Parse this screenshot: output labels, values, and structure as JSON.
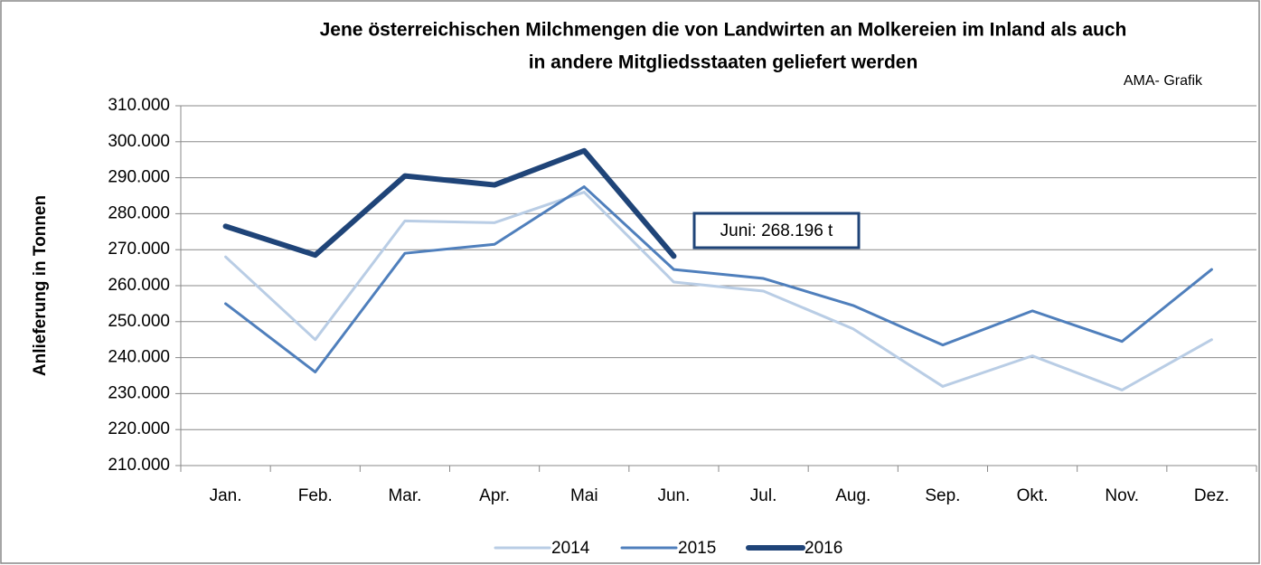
{
  "chart_data": {
    "type": "line",
    "title": [
      "Jene österreichischen Milchmengen die von Landwirten an Molkereien im Inland als auch",
      "in andere Mitgliedsstaaten geliefert werden"
    ],
    "source": "AMA- Grafik",
    "y_label": "Anlieferung in Tonnen",
    "annotation": "Juni: 268.196 t",
    "categories": [
      "Jan.",
      "Feb.",
      "Mar.",
      "Apr.",
      "Mai",
      "Jun.",
      "Jul.",
      "Aug.",
      "Sep.",
      "Okt.",
      "Nov.",
      "Dez."
    ],
    "series": [
      {
        "name": "2014",
        "color": "#b9cde5",
        "values": [
          268000,
          245000,
          278000,
          277500,
          286000,
          261000,
          258500,
          248000,
          232000,
          240500,
          231000,
          245000
        ]
      },
      {
        "name": "2015",
        "color": "#4f7fbc",
        "values": [
          255000,
          236000,
          269000,
          271500,
          287500,
          264500,
          262000,
          254500,
          243500,
          253000,
          244500,
          264500
        ]
      },
      {
        "name": "2016",
        "color": "#1f4478",
        "values": [
          276500,
          268500,
          290500,
          288000,
          297500,
          268196,
          null,
          null,
          null,
          null,
          null,
          null
        ]
      }
    ],
    "ylim": [
      210000,
      310000
    ],
    "yticks": [
      {
        "value": 210000,
        "label": "210.000"
      },
      {
        "value": 220000,
        "label": "220.000"
      },
      {
        "value": 230000,
        "label": "230.000"
      },
      {
        "value": 240000,
        "label": "240.000"
      },
      {
        "value": 250000,
        "label": "250.000"
      },
      {
        "value": 260000,
        "label": "260.000"
      },
      {
        "value": 270000,
        "label": "270.000"
      },
      {
        "value": 280000,
        "label": "280.000"
      },
      {
        "value": 290000,
        "label": "290.000"
      },
      {
        "value": 300000,
        "label": "300.000"
      },
      {
        "value": 310000,
        "label": "310.000"
      }
    ],
    "grid": true,
    "legend": "bottom"
  }
}
